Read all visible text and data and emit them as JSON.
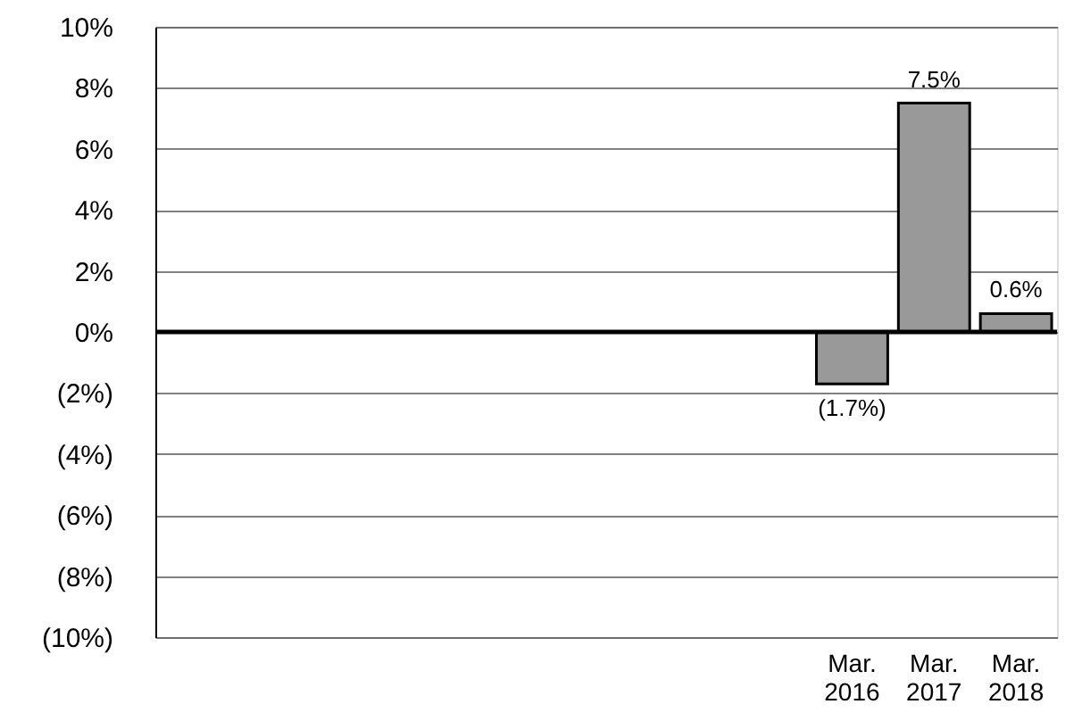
{
  "chart_data": {
    "type": "bar",
    "categories": [
      null,
      null,
      null,
      null,
      null,
      null,
      null,
      null,
      "Mar. 2016",
      "Mar. 2017",
      "Mar. 2018"
    ],
    "values": [
      null,
      null,
      null,
      null,
      null,
      null,
      null,
      null,
      -1.7,
      7.5,
      0.6
    ],
    "value_labels": [
      null,
      null,
      null,
      null,
      null,
      null,
      null,
      null,
      "(1.7%)",
      "7.5%",
      "0.6%"
    ],
    "color": "#999999",
    "ylim": [
      -10,
      10
    ],
    "yticks": [
      {
        "value": 10,
        "label": "10%"
      },
      {
        "value": 8,
        "label": "8%"
      },
      {
        "value": 6,
        "label": "6%"
      },
      {
        "value": 4,
        "label": "4%"
      },
      {
        "value": 2,
        "label": "2%"
      },
      {
        "value": 0,
        "label": "0%"
      },
      {
        "value": -2,
        "label": "(2%)"
      },
      {
        "value": -4,
        "label": "(4%)"
      },
      {
        "value": -6,
        "label": "(6%)"
      },
      {
        "value": -8,
        "label": "(8%)"
      },
      {
        "value": -10,
        "label": "(10%)"
      }
    ],
    "grid": "y"
  }
}
